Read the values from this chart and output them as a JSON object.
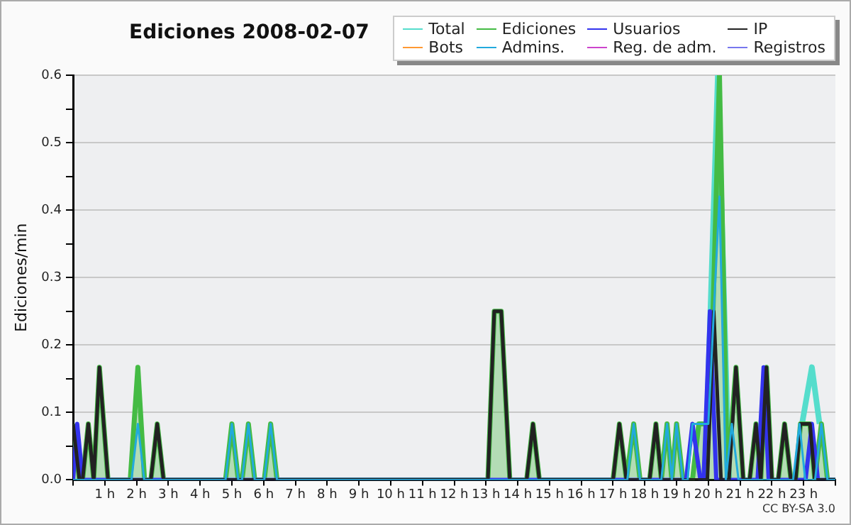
{
  "chart_data": {
    "type": "line",
    "title": "Ediciones  2008-02-07",
    "ylabel": "Ediciones/min",
    "annotations": [
      "CC BY-SA 3.0"
    ],
    "legend": "top right",
    "grid": "y",
    "xlim": [
      0,
      24
    ],
    "xticks": [
      {
        "value": 0,
        "label": null
      },
      {
        "value": 1,
        "label": "1 h"
      },
      {
        "value": 2,
        "label": "2 h"
      },
      {
        "value": 3,
        "label": "3 h"
      },
      {
        "value": 4,
        "label": "4 h"
      },
      {
        "value": 5,
        "label": "5 h"
      },
      {
        "value": 6,
        "label": "6 h"
      },
      {
        "value": 7,
        "label": "7 h"
      },
      {
        "value": 8,
        "label": "8 h"
      },
      {
        "value": 9,
        "label": "9 h"
      },
      {
        "value": 10,
        "label": "10 h"
      },
      {
        "value": 11,
        "label": "11 h"
      },
      {
        "value": 12,
        "label": "12 h"
      },
      {
        "value": 13,
        "label": "13 h"
      },
      {
        "value": 14,
        "label": "14 h"
      },
      {
        "value": 15,
        "label": "15 h"
      },
      {
        "value": 16,
        "label": "16 h"
      },
      {
        "value": 17,
        "label": "17 h"
      },
      {
        "value": 18,
        "label": "18 h"
      },
      {
        "value": 19,
        "label": "19 h"
      },
      {
        "value": 20,
        "label": "20 h"
      },
      {
        "value": 21,
        "label": "21 h"
      },
      {
        "value": 22,
        "label": "22 h"
      },
      {
        "value": 23,
        "label": "23 h"
      },
      {
        "value": 24,
        "label": null
      }
    ],
    "ylim": [
      0,
      0.6
    ],
    "yticks": [
      {
        "value": 0,
        "label": "0.0"
      },
      {
        "value": 0.05,
        "label": null
      },
      {
        "value": 0.1,
        "label": "0.1"
      },
      {
        "value": 0.15,
        "label": null
      },
      {
        "value": 0.2,
        "label": "0.2"
      },
      {
        "value": 0.25,
        "label": null
      },
      {
        "value": 0.3,
        "label": "0.3"
      },
      {
        "value": 0.35,
        "label": null
      },
      {
        "value": 0.4,
        "label": "0.4"
      },
      {
        "value": 0.45,
        "label": null
      },
      {
        "value": 0.5,
        "label": "0.5"
      },
      {
        "value": 0.55,
        "label": null
      },
      {
        "value": 0.6,
        "label": "0.6"
      }
    ],
    "series": [
      {
        "name": "Total",
        "color": "#55ddcc",
        "x": [
          19.9,
          20.3,
          20.65,
          21.5,
          22.95,
          23.26,
          23.5
        ],
        "values": [
          0,
          0.6,
          0,
          null,
          0.083,
          0.167,
          0.083
        ]
      },
      {
        "name": "Ediciones",
        "type": "area",
        "color": "#44bb44",
        "x": [
          0,
          0.2,
          0.3,
          0.48,
          0.65,
          0.83,
          1.1,
          1.8,
          2.04,
          2.25,
          2.45,
          2.65,
          2.85,
          4.8,
          5.0,
          5.2,
          5.32,
          5.52,
          5.72,
          6.02,
          6.22,
          6.42,
          13.06,
          13.26,
          13.48,
          13.75,
          14.28,
          14.48,
          14.68,
          17.0,
          17.2,
          17.42,
          17.65,
          17.85,
          18.15,
          18.35,
          18.52,
          18.7,
          18.85,
          19.0,
          19.2,
          19.5,
          19.7,
          20.0,
          20.1,
          20.35,
          20.6,
          20.87,
          21.1,
          21.3,
          21.5,
          21.65,
          21.83,
          22.0,
          22.2,
          22.4,
          22.6,
          22.75,
          22.9,
          23.2,
          23.35,
          23.56,
          23.75,
          24
        ],
        "values": [
          0.083,
          0,
          0,
          0.083,
          0,
          0.167,
          0,
          0,
          0.167,
          0,
          0,
          0.083,
          0,
          0,
          0.083,
          0,
          0,
          0.083,
          0,
          0,
          0.083,
          0,
          0,
          0.25,
          0.25,
          0,
          0,
          0.083,
          0,
          0,
          0.083,
          0,
          0.083,
          0,
          0,
          0.083,
          0,
          0.083,
          0,
          0.083,
          0,
          0,
          0.083,
          0.083,
          0.167,
          0.6,
          0,
          0.167,
          0,
          0,
          0.083,
          0,
          0.167,
          0,
          0,
          0.083,
          0,
          0,
          0.083,
          0.083,
          0,
          0.083,
          0,
          0
        ]
      },
      {
        "name": "Usuarios",
        "color": "#3333ee",
        "x": [
          0,
          0.13,
          0.3,
          19.3,
          19.5,
          19.75,
          19.85,
          20.05,
          20.25,
          21.55,
          21.74,
          21.9,
          23.06,
          23.26,
          23.45,
          24
        ],
        "values": [
          0,
          0.083,
          0,
          0,
          0.083,
          0,
          0,
          0.25,
          0,
          0,
          0.167,
          0,
          0,
          0.083,
          0,
          0
        ]
      },
      {
        "name": "IP",
        "color": "#222222",
        "x": [
          0,
          0.2,
          0.3,
          0.48,
          0.65,
          0.83,
          1.1,
          2.45,
          2.65,
          2.85,
          13.06,
          13.26,
          13.48,
          13.75,
          14.28,
          14.48,
          14.68,
          17.0,
          17.2,
          17.42,
          18.15,
          18.35,
          18.52,
          19.97,
          20.17,
          20.4,
          20.65,
          20.87,
          21.1,
          21.3,
          21.5,
          21.65,
          21.83,
          22.0,
          22.2,
          22.4,
          22.6,
          22.75,
          22.9,
          23.2,
          23.35,
          24
        ],
        "values": [
          0.083,
          0,
          0,
          0.083,
          0,
          0.167,
          0,
          0,
          0.083,
          0,
          0,
          0.25,
          0.25,
          0,
          0,
          0.083,
          0,
          0,
          0.083,
          0,
          0,
          0.083,
          0,
          0,
          0.25,
          0,
          0,
          0.167,
          0,
          0,
          0.083,
          0,
          0.167,
          0,
          0,
          0.083,
          0,
          0,
          0.083,
          0.083,
          0,
          0
        ]
      },
      {
        "name": "Bots",
        "color": "#ff9933",
        "values": [
          null,
          null
        ]
      },
      {
        "name": "Admins.",
        "color": "#22aadd",
        "x": [
          0,
          1.84,
          2.04,
          2.24,
          4.8,
          5.0,
          5.2,
          5.32,
          5.52,
          5.72,
          6.02,
          6.22,
          6.42,
          17.45,
          17.65,
          17.85,
          18.52,
          18.7,
          18.85,
          19.0,
          19.2,
          19.35,
          19.5,
          20.0,
          20.35,
          20.55,
          20.74,
          20.95,
          22.67,
          22.87,
          23.05,
          23.36,
          23.56,
          23.75,
          24
        ],
        "values": [
          0,
          0,
          0.083,
          0,
          0,
          0.083,
          0,
          0,
          0.083,
          0,
          0,
          0.083,
          0,
          0,
          0.083,
          0,
          0,
          0.083,
          0,
          0.083,
          0,
          0,
          0.083,
          0.083,
          0.42,
          0,
          0.083,
          0,
          0,
          0.083,
          0,
          0,
          0.083,
          0,
          0
        ]
      },
      {
        "name": "Reg. de adm.",
        "color": "#cc44cc",
        "values": [
          null,
          null
        ]
      },
      {
        "name": "Registros",
        "color": "#7777ee",
        "values": [
          null,
          null
        ]
      }
    ]
  }
}
